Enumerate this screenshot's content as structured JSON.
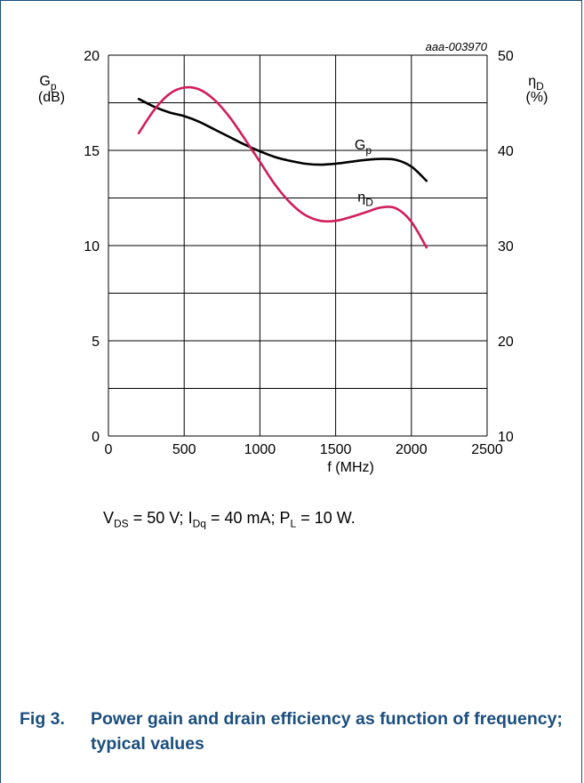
{
  "chart_data": {
    "type": "line",
    "reference": "aaa-003970",
    "x": [
      200,
      300,
      400,
      500,
      600,
      700,
      800,
      900,
      1000,
      1100,
      1200,
      1300,
      1400,
      1500,
      1600,
      1700,
      1800,
      1900,
      2000,
      2100
    ],
    "series": [
      {
        "name": "Gp",
        "axis": "left",
        "color": "#000000",
        "values": [
          17.7,
          17.3,
          17.0,
          16.8,
          16.5,
          16.1,
          15.7,
          15.3,
          14.95,
          14.65,
          14.45,
          14.3,
          14.25,
          14.3,
          14.4,
          14.5,
          14.55,
          14.5,
          14.15,
          13.4
        ]
      },
      {
        "name": "ηD",
        "axis": "right",
        "color": "#d11e5c",
        "values": [
          41.8,
          44.2,
          45.9,
          46.6,
          46.4,
          45.3,
          43.5,
          41.2,
          38.8,
          36.4,
          34.5,
          33.2,
          32.6,
          32.6,
          33.0,
          33.5,
          34.0,
          33.9,
          32.5,
          29.8
        ]
      }
    ],
    "x_axis": {
      "min": 0,
      "max": 2500,
      "ticks": [
        "0",
        "500",
        "1000",
        "1500",
        "2000",
        "2500"
      ],
      "label_line1": "f (MHz)"
    },
    "y_left": {
      "min": 0,
      "max": 20,
      "ticks": [
        "0",
        "5",
        "10",
        "15",
        "20"
      ],
      "label_sym": "G",
      "label_sub": "p",
      "label_unit": "(dB)"
    },
    "y_right": {
      "min": 10,
      "max": 50,
      "ticks": [
        "10",
        "20",
        "30",
        "40",
        "50"
      ],
      "label_sym": "η",
      "label_sub": "D",
      "label_unit": "(%)"
    },
    "series_labels": [
      {
        "sym": "G",
        "sub": "p"
      },
      {
        "sym": "η",
        "sub": "D"
      }
    ],
    "grid": true
  },
  "conditions": {
    "vds_sym": "V",
    "vds_sub": "DS",
    "vds_val": " = 50 V; ",
    "idq_sym": "I",
    "idq_sub": "Dq",
    "idq_val": " = 40 mA; ",
    "pl_sym": "P",
    "pl_sub": "L",
    "pl_val": " = 10 W."
  },
  "caption": {
    "number": "Fig 3.",
    "text": "Power gain and drain efficiency as function of frequency; typical values"
  }
}
